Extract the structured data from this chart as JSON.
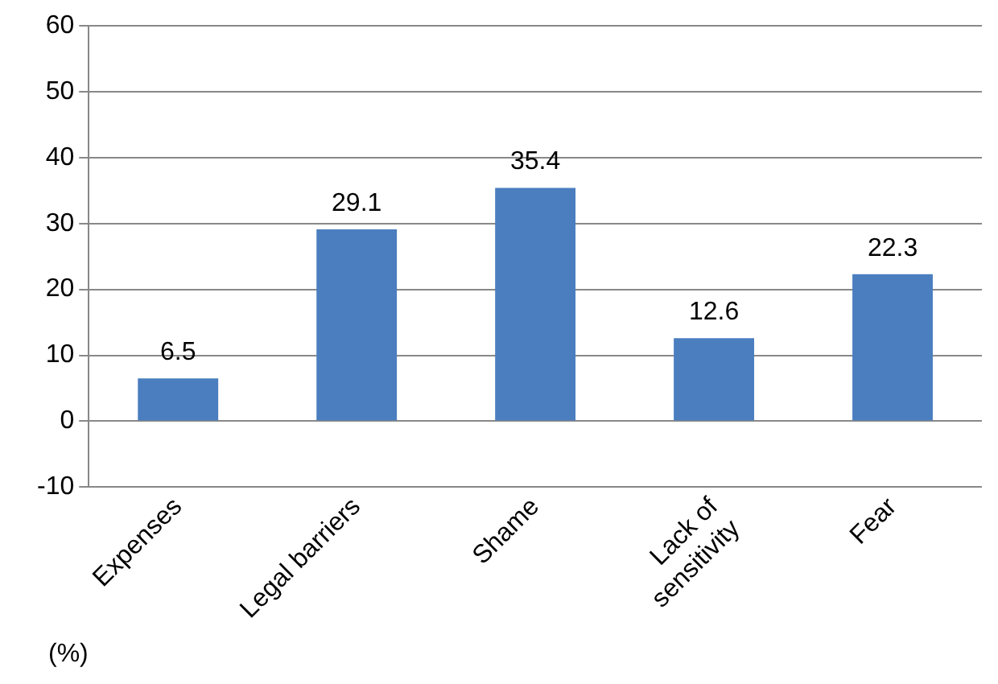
{
  "chart_data": {
    "type": "bar",
    "categories": [
      "Expenses",
      "Legal barriers",
      "Shame",
      "Lack of sensitivity",
      "Fear"
    ],
    "values": [
      6.5,
      29.1,
      35.4,
      12.6,
      22.3
    ],
    "color": "#4a7ebf",
    "ylim": [
      -10,
      60
    ],
    "yticks": [
      -10,
      0,
      10,
      20,
      30,
      40,
      50,
      60
    ],
    "grid": "y",
    "data_labels": true,
    "annotations": [
      "(%)"
    ]
  }
}
